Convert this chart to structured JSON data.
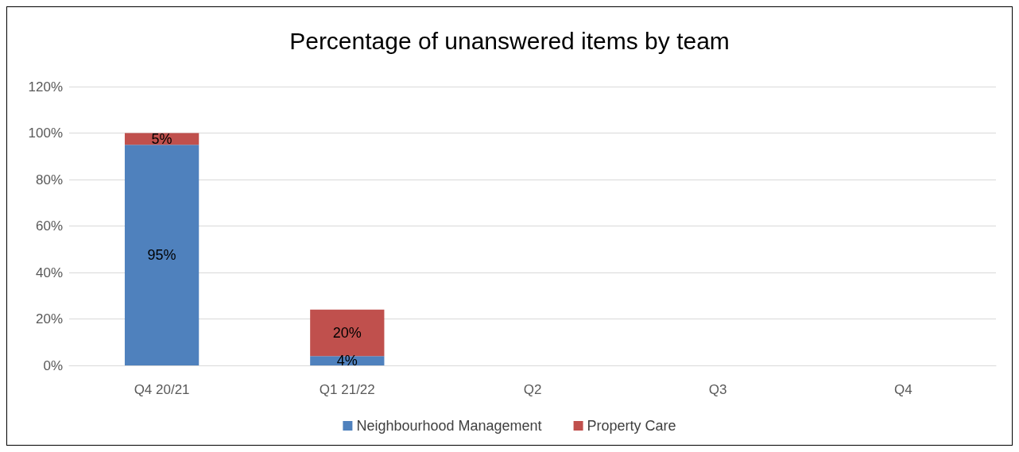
{
  "chart_data": {
    "type": "bar",
    "title": "Percentage of unanswered items by team",
    "categories": [
      "Q4 20/21",
      "Q1 21/22",
      "Q2",
      "Q3",
      "Q4"
    ],
    "stacked": true,
    "series": [
      {
        "name": "Neighbourhood Management",
        "color": "#4f81bd",
        "values": [
          95,
          4,
          null,
          null,
          null
        ],
        "value_labels": [
          "95%",
          "4%",
          null,
          null,
          null
        ]
      },
      {
        "name": "Property Care",
        "color": "#c0504d",
        "values": [
          5,
          20,
          null,
          null,
          null
        ],
        "value_labels": [
          "5%",
          "20%",
          null,
          null,
          null
        ]
      }
    ],
    "ylim": [
      0,
      120
    ],
    "yticks": [
      {
        "value": 0,
        "label": "0%"
      },
      {
        "value": 20,
        "label": "20%"
      },
      {
        "value": 40,
        "label": "40%"
      },
      {
        "value": 60,
        "label": "60%"
      },
      {
        "value": 80,
        "label": "80%"
      },
      {
        "value": 100,
        "label": "100%"
      },
      {
        "value": 120,
        "label": "120%"
      }
    ],
    "grid": "y",
    "legend": "bottom"
  }
}
